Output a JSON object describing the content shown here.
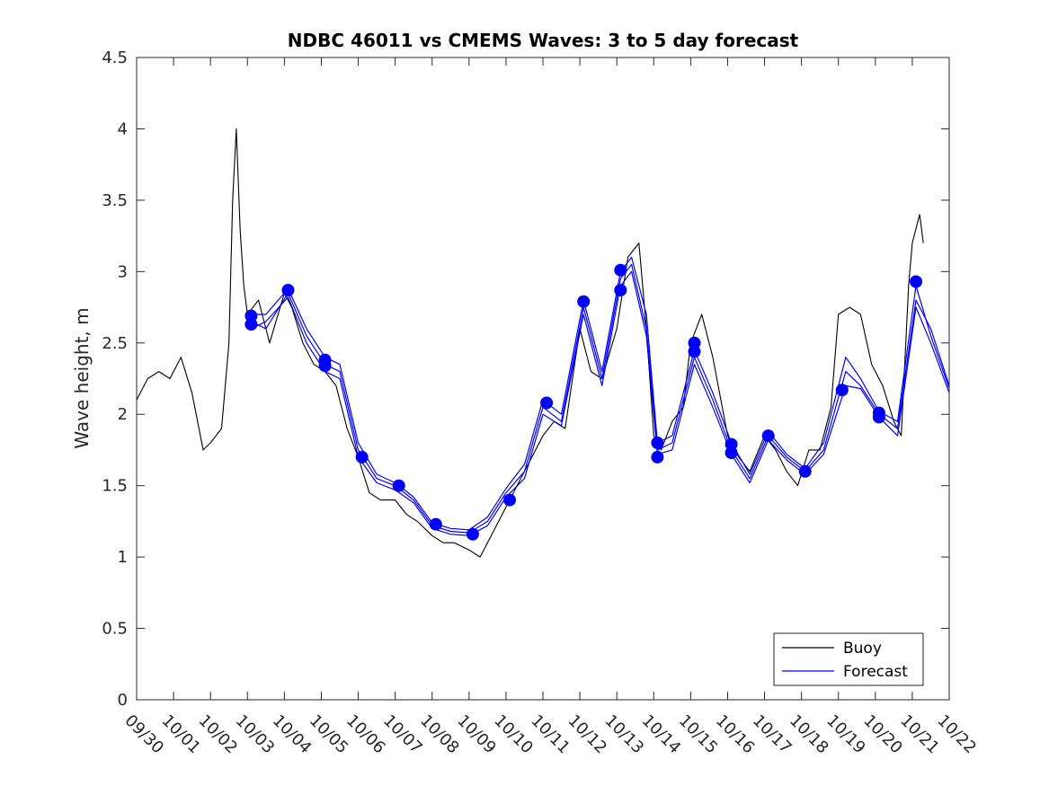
{
  "chart_data": {
    "type": "line",
    "title": "NDBC 46011 vs CMEMS Waves: 3 to 5 day forecast",
    "xlabel": "",
    "ylabel": "Wave height, m",
    "xlim": [
      0,
      22
    ],
    "ylim": [
      0,
      4.5
    ],
    "yticks": [
      0,
      0.5,
      1,
      1.5,
      2,
      2.5,
      3,
      3.5,
      4,
      4.5
    ],
    "ytick_labels": [
      "0",
      "0.5",
      "1",
      "1.5",
      "2",
      "2.5",
      "3",
      "3.5",
      "4",
      "4.5"
    ],
    "xtick_labels": [
      "09/30",
      "10/01",
      "10/02",
      "10/03",
      "10/04",
      "10/05",
      "10/06",
      "10/07",
      "10/08",
      "10/09",
      "10/10",
      "10/11",
      "10/12",
      "10/13",
      "10/14",
      "10/15",
      "10/16",
      "10/17",
      "10/18",
      "10/19",
      "10/20",
      "10/21",
      "10/22"
    ],
    "grid": false,
    "legend_position": "bottom-right",
    "colors": {
      "buoy": "#000000",
      "forecast": "#0000ff"
    },
    "series": [
      {
        "name": "Buoy",
        "x": [
          0.0,
          0.3,
          0.6,
          0.9,
          1.2,
          1.5,
          1.8,
          2.0,
          2.3,
          2.5,
          2.6,
          2.7,
          2.8,
          2.9,
          3.0,
          3.3,
          3.6,
          4.0,
          4.2,
          4.5,
          4.8,
          5.1,
          5.4,
          5.7,
          6.0,
          6.3,
          6.6,
          7.0,
          7.3,
          7.6,
          8.0,
          8.3,
          8.6,
          9.0,
          9.3,
          9.6,
          10.0,
          10.3,
          10.6,
          11.0,
          11.3,
          11.6,
          12.0,
          12.3,
          12.6,
          13.0,
          13.3,
          13.6,
          13.8,
          14.0,
          14.2,
          14.5,
          14.8,
          15.0,
          15.3,
          15.6,
          16.0,
          16.3,
          16.6,
          17.0,
          17.3,
          17.6,
          17.9,
          18.2,
          18.5,
          18.8,
          19.0,
          19.3,
          19.6,
          19.9,
          20.2,
          20.5,
          20.7,
          20.9,
          21.0,
          21.2,
          21.3
        ],
        "y": [
          2.1,
          2.25,
          2.3,
          2.25,
          2.4,
          2.15,
          1.75,
          1.8,
          1.9,
          2.5,
          3.5,
          4.0,
          3.3,
          2.9,
          2.7,
          2.8,
          2.5,
          2.85,
          2.75,
          2.5,
          2.35,
          2.3,
          2.2,
          1.9,
          1.7,
          1.45,
          1.4,
          1.4,
          1.3,
          1.25,
          1.15,
          1.1,
          1.1,
          1.05,
          1.0,
          1.15,
          1.35,
          1.5,
          1.65,
          1.85,
          1.95,
          1.9,
          2.6,
          2.3,
          2.25,
          2.6,
          3.1,
          3.2,
          2.6,
          1.85,
          1.75,
          1.95,
          2.05,
          2.5,
          2.7,
          2.4,
          1.85,
          1.7,
          1.6,
          1.85,
          1.75,
          1.6,
          1.5,
          1.75,
          1.75,
          2.05,
          2.7,
          2.75,
          2.7,
          2.35,
          2.2,
          1.95,
          1.85,
          2.9,
          3.2,
          3.4,
          3.2
        ]
      },
      {
        "name": "Forecast",
        "x": [
          3.1,
          3.5,
          4.1,
          4.6,
          5.1,
          5.5,
          6.0,
          6.5,
          7.0,
          7.5,
          8.0,
          8.5,
          9.0,
          9.5,
          10.0,
          10.5,
          11.0,
          11.5,
          12.1,
          12.6,
          13.1,
          13.4,
          13.8,
          14.1,
          14.5,
          15.1,
          15.6,
          16.1,
          16.6,
          17.1,
          17.6,
          18.1,
          18.6,
          19.2,
          19.6,
          20.1,
          20.6,
          21.1,
          21.5,
          22.0
        ],
        "y": [
          2.65,
          2.6,
          2.85,
          2.55,
          2.35,
          2.3,
          1.75,
          1.55,
          1.5,
          1.4,
          1.22,
          1.18,
          1.17,
          1.25,
          1.45,
          1.6,
          2.05,
          1.95,
          2.75,
          2.25,
          2.95,
          3.05,
          2.6,
          1.75,
          1.8,
          2.4,
          2.1,
          1.75,
          1.55,
          1.85,
          1.7,
          1.6,
          1.75,
          2.3,
          2.2,
          2.0,
          1.9,
          2.8,
          2.6,
          2.2
        ]
      },
      {
        "name": "Forecast",
        "x": [
          3.1,
          3.5,
          4.1,
          4.6,
          5.1,
          5.5,
          6.0,
          6.5,
          7.0,
          7.5,
          8.0,
          8.5,
          9.0,
          9.5,
          10.0,
          10.5,
          11.0,
          11.5,
          12.1,
          12.6,
          13.1,
          13.4,
          13.8,
          14.1,
          14.5,
          15.1,
          15.6,
          16.1,
          16.6,
          17.1,
          17.6,
          18.1,
          18.6,
          19.2,
          19.6,
          20.1,
          20.6,
          21.1,
          21.5,
          22.0
        ],
        "y": [
          2.7,
          2.7,
          2.88,
          2.6,
          2.4,
          2.35,
          1.8,
          1.58,
          1.52,
          1.42,
          1.24,
          1.2,
          1.19,
          1.28,
          1.48,
          1.65,
          2.1,
          2.0,
          2.8,
          2.3,
          3.0,
          3.1,
          2.7,
          1.8,
          1.85,
          2.45,
          2.15,
          1.8,
          1.58,
          1.88,
          1.72,
          1.62,
          1.8,
          2.4,
          2.25,
          2.02,
          1.95,
          2.9,
          2.55,
          2.18
        ]
      },
      {
        "name": "Forecast",
        "x": [
          3.1,
          3.5,
          4.1,
          4.6,
          5.1,
          5.5,
          6.0,
          6.5,
          7.0,
          7.5,
          8.0,
          8.5,
          9.0,
          9.5,
          10.0,
          10.5,
          11.0,
          11.5,
          12.1,
          12.6,
          13.1,
          13.4,
          13.8,
          14.1,
          14.5,
          15.1,
          15.6,
          16.1,
          16.6,
          17.1,
          17.6,
          18.1,
          18.6,
          19.2,
          19.6,
          20.1,
          20.6,
          21.1,
          21.5,
          22.0
        ],
        "y": [
          2.6,
          2.65,
          2.82,
          2.5,
          2.3,
          2.25,
          1.7,
          1.52,
          1.47,
          1.38,
          1.2,
          1.16,
          1.15,
          1.22,
          1.42,
          1.55,
          2.0,
          1.92,
          2.7,
          2.2,
          2.9,
          3.0,
          2.55,
          1.72,
          1.75,
          2.35,
          2.05,
          1.72,
          1.52,
          1.82,
          1.68,
          1.58,
          1.72,
          2.2,
          2.18,
          1.98,
          1.85,
          2.75,
          2.5,
          2.15
        ]
      }
    ],
    "markers": {
      "name": "Forecast",
      "x": [
        3.1,
        3.1,
        4.1,
        5.1,
        5.1,
        6.1,
        7.1,
        8.1,
        9.1,
        10.1,
        11.1,
        12.1,
        13.1,
        13.1,
        14.1,
        14.1,
        15.1,
        15.1,
        16.1,
        16.1,
        17.1,
        18.1,
        19.1,
        20.1,
        20.1,
        21.1
      ],
      "y": [
        2.69,
        2.63,
        2.87,
        2.38,
        2.34,
        1.7,
        1.5,
        1.23,
        1.16,
        1.4,
        2.08,
        2.79,
        3.01,
        2.87,
        1.8,
        1.7,
        2.5,
        2.44,
        1.79,
        1.73,
        1.85,
        1.6,
        2.17,
        2.01,
        1.98,
        2.93
      ]
    }
  }
}
